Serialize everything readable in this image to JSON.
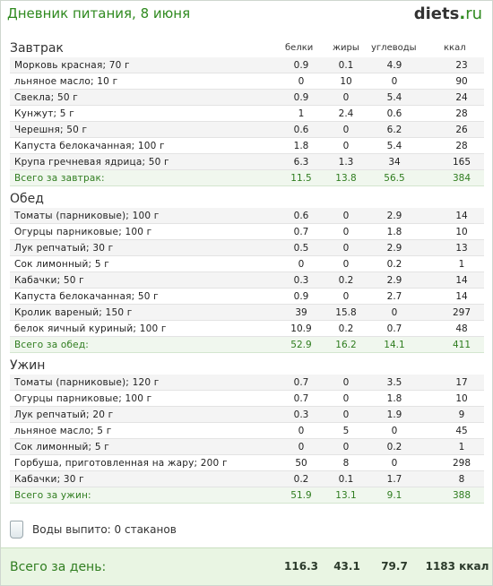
{
  "header": {
    "title": "Дневник питания, 8 июня",
    "logo_name": "diets",
    "logo_dot": ".",
    "logo_tld": "ru"
  },
  "columns": {
    "protein": "белки",
    "fat": "жиры",
    "carbs": "углеводы",
    "kcal": "ккал"
  },
  "sections": [
    {
      "title": "Завтрак",
      "items": [
        {
          "name": "Морковь красная; 70 г",
          "protein": "0.9",
          "fat": "0.1",
          "carbs": "4.9",
          "kcal": "23"
        },
        {
          "name": "льняное масло; 10 г",
          "protein": "0",
          "fat": "10",
          "carbs": "0",
          "kcal": "90"
        },
        {
          "name": "Свекла; 50 г",
          "protein": "0.9",
          "fat": "0",
          "carbs": "5.4",
          "kcal": "24"
        },
        {
          "name": "Кунжут; 5 г",
          "protein": "1",
          "fat": "2.4",
          "carbs": "0.6",
          "kcal": "28"
        },
        {
          "name": "Черешня; 50 г",
          "protein": "0.6",
          "fat": "0",
          "carbs": "6.2",
          "kcal": "26"
        },
        {
          "name": "Капуста белокачанная; 100 г",
          "protein": "1.8",
          "fat": "0",
          "carbs": "5.4",
          "kcal": "28"
        },
        {
          "name": "Крупа гречневая ядрица; 50 г",
          "protein": "6.3",
          "fat": "1.3",
          "carbs": "34",
          "kcal": "165"
        }
      ],
      "total": {
        "label": "Всего за завтрак:",
        "protein": "11.5",
        "fat": "13.8",
        "carbs": "56.5",
        "kcal": "384"
      }
    },
    {
      "title": "Обед",
      "items": [
        {
          "name": "Томаты (парниковые); 100 г",
          "protein": "0.6",
          "fat": "0",
          "carbs": "2.9",
          "kcal": "14"
        },
        {
          "name": "Огурцы парниковые; 100 г",
          "protein": "0.7",
          "fat": "0",
          "carbs": "1.8",
          "kcal": "10"
        },
        {
          "name": "Лук репчатый; 30 г",
          "protein": "0.5",
          "fat": "0",
          "carbs": "2.9",
          "kcal": "13"
        },
        {
          "name": "Сок лимонный; 5 г",
          "protein": "0",
          "fat": "0",
          "carbs": "0.2",
          "kcal": "1"
        },
        {
          "name": "Кабачки; 50 г",
          "protein": "0.3",
          "fat": "0.2",
          "carbs": "2.9",
          "kcal": "14"
        },
        {
          "name": "Капуста белокачанная; 50 г",
          "protein": "0.9",
          "fat": "0",
          "carbs": "2.7",
          "kcal": "14"
        },
        {
          "name": "Кролик вареный; 150 г",
          "protein": "39",
          "fat": "15.8",
          "carbs": "0",
          "kcal": "297"
        },
        {
          "name": "белок яичный куриный; 100 г",
          "protein": "10.9",
          "fat": "0.2",
          "carbs": "0.7",
          "kcal": "48"
        }
      ],
      "total": {
        "label": "Всего за обед:",
        "protein": "52.9",
        "fat": "16.2",
        "carbs": "14.1",
        "kcal": "411"
      }
    },
    {
      "title": "Ужин",
      "items": [
        {
          "name": "Томаты (парниковые); 120 г",
          "protein": "0.7",
          "fat": "0",
          "carbs": "3.5",
          "kcal": "17"
        },
        {
          "name": "Огурцы парниковые; 100 г",
          "protein": "0.7",
          "fat": "0",
          "carbs": "1.8",
          "kcal": "10"
        },
        {
          "name": "Лук репчатый; 20 г",
          "protein": "0.3",
          "fat": "0",
          "carbs": "1.9",
          "kcal": "9"
        },
        {
          "name": "льняное масло; 5 г",
          "protein": "0",
          "fat": "5",
          "carbs": "0",
          "kcal": "45"
        },
        {
          "name": "Сок лимонный; 5 г",
          "protein": "0",
          "fat": "0",
          "carbs": "0.2",
          "kcal": "1"
        },
        {
          "name": "Горбуша, приготовленная на жару; 200 г",
          "protein": "50",
          "fat": "8",
          "carbs": "0",
          "kcal": "298"
        },
        {
          "name": "Кабачки; 30 г",
          "protein": "0.2",
          "fat": "0.1",
          "carbs": "1.7",
          "kcal": "8"
        }
      ],
      "total": {
        "label": "Всего за ужин:",
        "protein": "51.9",
        "fat": "13.1",
        "carbs": "9.1",
        "kcal": "388"
      }
    }
  ],
  "water": {
    "label": "Воды выпито: 0 стаканов",
    "icon": "glass-icon"
  },
  "day_total": {
    "label": "Всего за день:",
    "protein": "116.3",
    "fat": "43.1",
    "carbs": "79.7",
    "kcal": "1183 ккал"
  }
}
